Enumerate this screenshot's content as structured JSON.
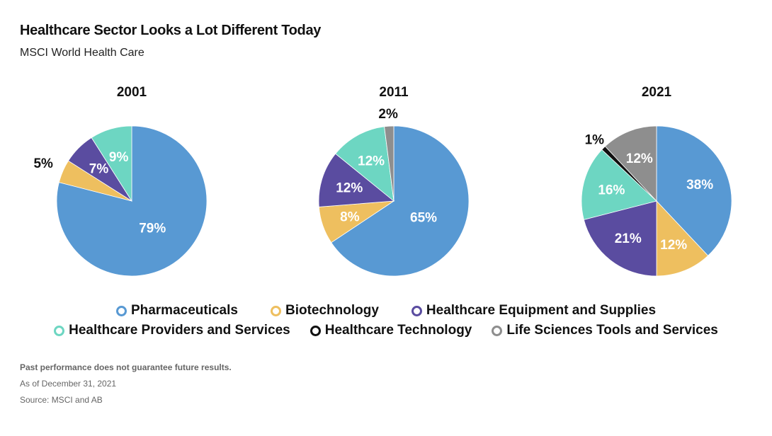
{
  "title": "Healthcare Sector Looks a Lot Different Today",
  "subtitle": "MSCI World Health Care",
  "footer": {
    "disclaimer": "Past performance does not guarantee future results.",
    "as_of": "As of December 31, 2021",
    "source": "Source: MSCI and AB"
  },
  "chart_data": [
    {
      "type": "pie",
      "title": "2001",
      "labels": [
        "Pharmaceuticals",
        "Biotechnology",
        "Healthcare Equipment and Supplies",
        "Healthcare Providers and Services",
        "Healthcare Technology",
        "Life Sciences Tools and Services"
      ],
      "values": [
        79,
        5,
        7,
        9,
        0,
        0
      ]
    },
    {
      "type": "pie",
      "title": "2011",
      "labels": [
        "Pharmaceuticals",
        "Biotechnology",
        "Healthcare Equipment and Supplies",
        "Healthcare Providers and Services",
        "Healthcare Technology",
        "Life Sciences Tools and Services"
      ],
      "values": [
        65,
        8,
        12,
        12,
        0,
        2
      ]
    },
    {
      "type": "pie",
      "title": "2021",
      "labels": [
        "Pharmaceuticals",
        "Biotechnology",
        "Healthcare Equipment and Supplies",
        "Healthcare Providers and Services",
        "Healthcare Technology",
        "Life Sciences Tools and Services"
      ],
      "values": [
        38,
        12,
        21,
        16,
        1,
        12
      ]
    }
  ],
  "legend": {
    "placement": "bottom",
    "rows": [
      [
        {
          "label": "Pharmaceuticals",
          "color": "#5899d3"
        },
        {
          "label": "Biotechnology",
          "color": "#eebf5f"
        },
        {
          "label": "Healthcare Equipment and Supplies",
          "color": "#5a4ca0"
        }
      ],
      [
        {
          "label": "Healthcare Providers and Services",
          "color": "#6dd6c2"
        },
        {
          "label": "Healthcare Technology",
          "color": "#111111"
        },
        {
          "label": "Life Sciences Tools and Services",
          "color": "#8e8e8e"
        }
      ]
    ]
  },
  "colors": [
    "#5899d3",
    "#eebf5f",
    "#5a4ca0",
    "#6dd6c2",
    "#111111",
    "#8e8e8e"
  ]
}
